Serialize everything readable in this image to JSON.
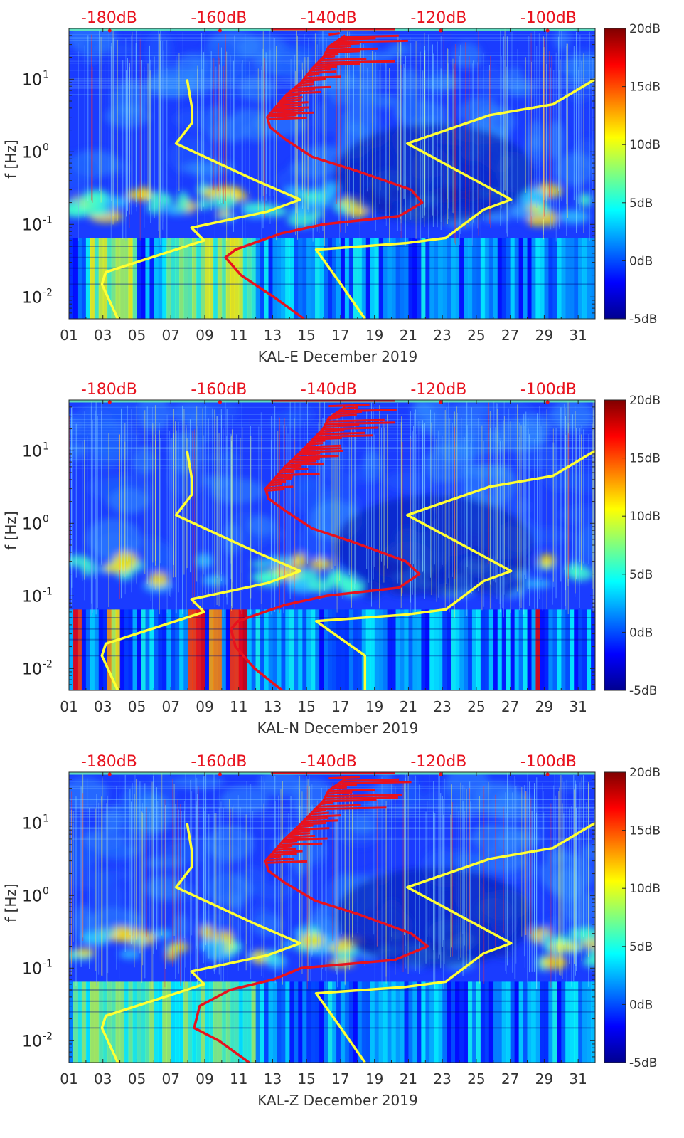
{
  "chart_data": [
    {
      "type": "heatmap",
      "station": "KAL-E",
      "xlabel": "KAL-E December 2019",
      "ylabel": "f [Hz]",
      "x_ticks": [
        "01",
        "03",
        "05",
        "07",
        "09",
        "11",
        "13",
        "15",
        "17",
        "19",
        "21",
        "23",
        "25",
        "27",
        "29",
        "31"
      ],
      "x_range": [
        1,
        32
      ],
      "y_scale": "log",
      "y_range": [
        0.005,
        50
      ],
      "y_ticks": [
        {
          "label": "10",
          "exp": "1",
          "value": 10
        },
        {
          "label": "10",
          "exp": "0",
          "value": 1
        },
        {
          "label": "10",
          "exp": "-1",
          "value": 0.1
        },
        {
          "label": "10",
          "exp": "-2",
          "value": 0.01
        }
      ],
      "top_axis_ticks": [
        "-180dB",
        "-160dB",
        "-140dB",
        "-120dB",
        "-100dB"
      ],
      "top_axis_range_db": [
        -187.3,
        -91.5
      ],
      "colorbar": {
        "ticks": [
          "20dB",
          "15dB",
          "10dB",
          "5dB",
          "0dB",
          "-5dB"
        ],
        "range_db": [
          -5,
          20
        ]
      },
      "series": [
        {
          "kind": "yellow-low",
          "points": [
            [
              -178.4,
              0.005
            ],
            [
              -181.3,
              0.015
            ],
            [
              -180.6,
              0.022
            ],
            [
              -162.7,
              0.06
            ],
            [
              -165.0,
              0.09
            ],
            [
              -151.2,
              0.15
            ],
            [
              -145.2,
              0.22
            ],
            [
              -153.2,
              0.4
            ],
            [
              -167.8,
              1.3
            ],
            [
              -164.9,
              2.5
            ],
            [
              -164.9,
              4
            ],
            [
              -165.8,
              10
            ]
          ]
        },
        {
          "kind": "yellow-high",
          "points": [
            [
              -133.4,
              0.005
            ],
            [
              -137.8,
              0.015
            ],
            [
              -142.3,
              0.045
            ],
            [
              -126.1,
              0.055
            ],
            [
              -118.7,
              0.065
            ],
            [
              -111.8,
              0.16
            ],
            [
              -106.8,
              0.22
            ],
            [
              -125.7,
              1.3
            ],
            [
              -110.7,
              3.2
            ],
            [
              -99.2,
              4.5
            ],
            [
              -91.5,
              10
            ]
          ]
        },
        {
          "kind": "red-median",
          "points": [
            [
              -144.5,
              0.005
            ],
            [
              -150.0,
              0.01
            ],
            [
              -156.0,
              0.02
            ],
            [
              -158.8,
              0.035
            ],
            [
              -157.0,
              0.045
            ],
            [
              -148.7,
              0.075
            ],
            [
              -141.0,
              0.1
            ],
            [
              -127.2,
              0.13
            ],
            [
              -123.0,
              0.2
            ],
            [
              -125.0,
              0.3
            ],
            [
              -135.0,
              0.55
            ],
            [
              -143.0,
              0.85
            ],
            [
              -148.0,
              1.5
            ],
            [
              -150.7,
              2.2
            ],
            [
              -151.2,
              3.0
            ],
            [
              -149.8,
              4.0
            ],
            [
              -147.8,
              6.0
            ],
            [
              -145.0,
              9.0
            ],
            [
              -143.0,
              14
            ],
            [
              -141.0,
              20
            ],
            [
              -140.0,
              28
            ],
            [
              -137.0,
              40
            ]
          ]
        }
      ]
    },
    {
      "type": "heatmap",
      "station": "KAL-N",
      "xlabel": "KAL-N December 2019",
      "ylabel": "f [Hz]",
      "x_ticks": [
        "01",
        "03",
        "05",
        "07",
        "09",
        "11",
        "13",
        "15",
        "17",
        "19",
        "21",
        "23",
        "25",
        "27",
        "29",
        "31"
      ],
      "x_range": [
        1,
        32
      ],
      "y_scale": "log",
      "y_range": [
        0.005,
        50
      ],
      "y_ticks": [
        {
          "label": "10",
          "exp": "1",
          "value": 10
        },
        {
          "label": "10",
          "exp": "0",
          "value": 1
        },
        {
          "label": "10",
          "exp": "-1",
          "value": 0.1
        },
        {
          "label": "10",
          "exp": "-2",
          "value": 0.01
        }
      ],
      "top_axis_ticks": [
        "-180dB",
        "-160dB",
        "-140dB",
        "-120dB",
        "-100dB"
      ],
      "top_axis_range_db": [
        -187.3,
        -91.5
      ],
      "colorbar": {
        "ticks": [
          "20dB",
          "15dB",
          "10dB",
          "5dB",
          "0dB",
          "-5dB"
        ],
        "range_db": [
          -5,
          20
        ]
      },
      "series": [
        {
          "kind": "yellow-low",
          "points": [
            [
              -178.4,
              0.005
            ],
            [
              -181.3,
              0.015
            ],
            [
              -180.6,
              0.022
            ],
            [
              -162.7,
              0.06
            ],
            [
              -165.0,
              0.09
            ],
            [
              -151.2,
              0.15
            ],
            [
              -145.2,
              0.22
            ],
            [
              -153.2,
              0.4
            ],
            [
              -167.8,
              1.3
            ],
            [
              -164.9,
              2.5
            ],
            [
              -164.9,
              4
            ],
            [
              -165.8,
              10
            ]
          ]
        },
        {
          "kind": "yellow-high",
          "points": [
            [
              -133.4,
              0.005
            ],
            [
              -133.4,
              0.015
            ],
            [
              -142.3,
              0.045
            ],
            [
              -126.1,
              0.055
            ],
            [
              -118.7,
              0.065
            ],
            [
              -111.8,
              0.16
            ],
            [
              -106.8,
              0.22
            ],
            [
              -125.7,
              1.3
            ],
            [
              -110.7,
              3.2
            ],
            [
              -99.2,
              4.5
            ],
            [
              -91.5,
              10
            ]
          ]
        },
        {
          "kind": "red-median",
          "points": [
            [
              -148.5,
              0.005
            ],
            [
              -153.5,
              0.01
            ],
            [
              -157.0,
              0.02
            ],
            [
              -157.8,
              0.035
            ],
            [
              -156.5,
              0.045
            ],
            [
              -148.0,
              0.075
            ],
            [
              -140.5,
              0.1
            ],
            [
              -127.2,
              0.13
            ],
            [
              -123.5,
              0.2
            ],
            [
              -126.0,
              0.3
            ],
            [
              -135.5,
              0.55
            ],
            [
              -143.0,
              0.85
            ],
            [
              -148.0,
              1.5
            ],
            [
              -151.0,
              2.2
            ],
            [
              -151.5,
              3.0
            ],
            [
              -150.0,
              4.0
            ],
            [
              -148.0,
              6.0
            ],
            [
              -145.5,
              9.0
            ],
            [
              -143.0,
              14
            ],
            [
              -141.0,
              20
            ],
            [
              -140.0,
              28
            ],
            [
              -137.0,
              40
            ]
          ]
        }
      ]
    },
    {
      "type": "heatmap",
      "station": "KAL-Z",
      "xlabel": "KAL-Z December 2019",
      "ylabel": "f [Hz]",
      "x_ticks": [
        "01",
        "03",
        "05",
        "07",
        "09",
        "11",
        "13",
        "15",
        "17",
        "19",
        "21",
        "23",
        "25",
        "27",
        "29",
        "31"
      ],
      "x_range": [
        1,
        32
      ],
      "y_scale": "log",
      "y_range": [
        0.005,
        50
      ],
      "y_ticks": [
        {
          "label": "10",
          "exp": "1",
          "value": 10
        },
        {
          "label": "10",
          "exp": "0",
          "value": 1
        },
        {
          "label": "10",
          "exp": "-1",
          "value": 0.1
        },
        {
          "label": "10",
          "exp": "-2",
          "value": 0.01
        }
      ],
      "top_axis_ticks": [
        "-180dB",
        "-160dB",
        "-140dB",
        "-120dB",
        "-100dB"
      ],
      "top_axis_range_db": [
        -187.3,
        -91.5
      ],
      "colorbar": {
        "ticks": [
          "20dB",
          "15dB",
          "10dB",
          "5dB",
          "0dB",
          "-5dB"
        ],
        "range_db": [
          -5,
          20
        ]
      },
      "series": [
        {
          "kind": "yellow-low",
          "points": [
            [
              -178.4,
              0.005
            ],
            [
              -181.3,
              0.015
            ],
            [
              -180.6,
              0.022
            ],
            [
              -162.7,
              0.06
            ],
            [
              -165.0,
              0.09
            ],
            [
              -151.2,
              0.15
            ],
            [
              -145.2,
              0.22
            ],
            [
              -153.2,
              0.4
            ],
            [
              -167.8,
              1.3
            ],
            [
              -164.9,
              2.5
            ],
            [
              -164.9,
              4
            ],
            [
              -165.8,
              10
            ]
          ]
        },
        {
          "kind": "yellow-high",
          "points": [
            [
              -133.4,
              0.005
            ],
            [
              -137.8,
              0.015
            ],
            [
              -142.3,
              0.045
            ],
            [
              -126.1,
              0.055
            ],
            [
              -118.7,
              0.065
            ],
            [
              -111.8,
              0.16
            ],
            [
              -106.8,
              0.22
            ],
            [
              -125.7,
              1.3
            ],
            [
              -110.7,
              3.2
            ],
            [
              -99.2,
              4.5
            ],
            [
              -91.5,
              10
            ]
          ]
        },
        {
          "kind": "red-median",
          "points": [
            [
              -154.5,
              0.005
            ],
            [
              -160.0,
              0.01
            ],
            [
              -164.5,
              0.015
            ],
            [
              -163.5,
              0.03
            ],
            [
              -158.0,
              0.05
            ],
            [
              -150.0,
              0.07
            ],
            [
              -145.0,
              0.1
            ],
            [
              -128.0,
              0.13
            ],
            [
              -122.0,
              0.2
            ],
            [
              -125.0,
              0.3
            ],
            [
              -134.5,
              0.55
            ],
            [
              -142.5,
              0.85
            ],
            [
              -148.0,
              1.5
            ],
            [
              -151.0,
              2.2
            ],
            [
              -151.5,
              3.0
            ],
            [
              -150.0,
              4.0
            ],
            [
              -148.0,
              6.0
            ],
            [
              -145.5,
              9.0
            ],
            [
              -143.0,
              14
            ],
            [
              -141.0,
              20
            ],
            [
              -140.0,
              28
            ],
            [
              -137.0,
              40
            ]
          ]
        }
      ]
    }
  ]
}
